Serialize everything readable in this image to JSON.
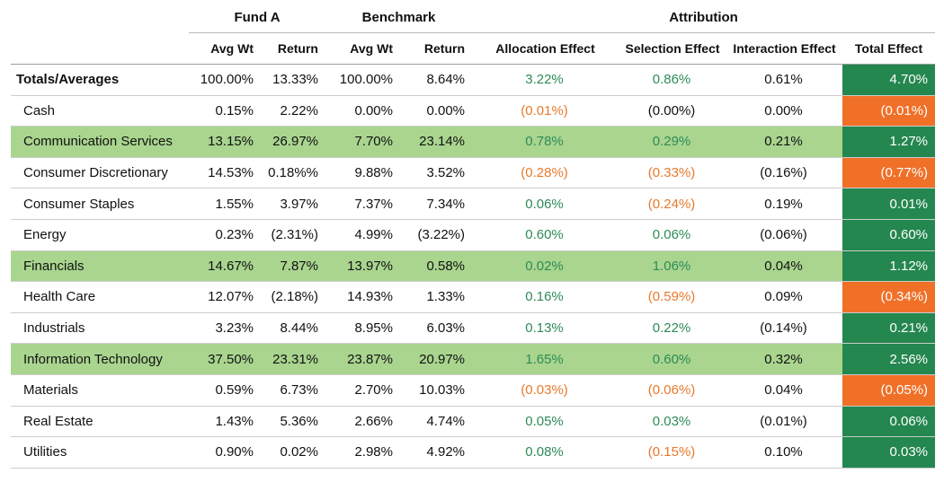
{
  "table": {
    "groups": [
      "Fund A",
      "Benchmark",
      "Attribution"
    ],
    "columns": [
      "Avg Wt",
      "Return",
      "Avg Wt",
      "Return",
      "Allocation Effect",
      "Selection Effect",
      "Interaction Effect",
      "Total Effect"
    ],
    "rows": [
      {
        "label": "Totals/Averages",
        "values": [
          "100.00%",
          "13.33%",
          "100.00%",
          "8.64%",
          "3.22%",
          "0.86%",
          "0.61%",
          "4.70%"
        ]
      },
      {
        "label": "Cash",
        "values": [
          "0.15%",
          "2.22%",
          "0.00%",
          "0.00%",
          "(0.01%)",
          "(0.00%)",
          "0.00%",
          "(0.01%)"
        ]
      },
      {
        "label": "Communication Services",
        "values": [
          "13.15%",
          "26.97%",
          "7.70%",
          "23.14%",
          "0.78%",
          "0.29%",
          "0.21%",
          "1.27%"
        ],
        "highlight": true
      },
      {
        "label": "Consumer Discretionary",
        "values": [
          "14.53%",
          "0.18%%",
          "9.88%",
          "3.52%",
          "(0.28%)",
          "(0.33%)",
          "(0.16%)",
          "(0.77%)"
        ]
      },
      {
        "label": "Consumer Staples",
        "values": [
          "1.55%",
          "3.97%",
          "7.37%",
          "7.34%",
          "0.06%",
          "(0.24%)",
          "0.19%",
          "0.01%"
        ]
      },
      {
        "label": "Energy",
        "values": [
          "0.23%",
          "(2.31%)",
          "4.99%",
          "(3.22%)",
          "0.60%",
          "0.06%",
          "(0.06%)",
          "0.60%"
        ]
      },
      {
        "label": "Financials",
        "values": [
          "14.67%",
          "7.87%",
          "13.97%",
          "0.58%",
          "0.02%",
          "1.06%",
          "0.04%",
          "1.12%"
        ],
        "highlight": true
      },
      {
        "label": "Health Care",
        "values": [
          "12.07%",
          "(2.18%)",
          "14.93%",
          "1.33%",
          "0.16%",
          "(0.59%)",
          "0.09%",
          "(0.34%)"
        ]
      },
      {
        "label": "Industrials",
        "values": [
          "3.23%",
          "8.44%",
          "8.95%",
          "6.03%",
          "0.13%",
          "0.22%",
          "(0.14%)",
          "0.21%"
        ]
      },
      {
        "label": "Information Technology",
        "values": [
          "37.50%",
          "23.31%",
          "23.87%",
          "20.97%",
          "1.65%",
          "0.60%",
          "0.32%",
          "2.56%"
        ],
        "highlight": true
      },
      {
        "label": "Materials",
        "values": [
          "0.59%",
          "6.73%",
          "2.70%",
          "10.03%",
          "(0.03%)",
          "(0.06%)",
          "0.04%",
          "(0.05%)"
        ]
      },
      {
        "label": "Real Estate",
        "values": [
          "1.43%",
          "5.36%",
          "2.66%",
          "4.74%",
          "0.05%",
          "0.03%",
          "(0.01%)",
          "0.06%"
        ]
      },
      {
        "label": "Utilities",
        "values": [
          "0.90%",
          "0.02%",
          "2.98%",
          "4.92%",
          "0.08%",
          "(0.15%)",
          "0.10%",
          "0.03%"
        ]
      }
    ]
  }
}
